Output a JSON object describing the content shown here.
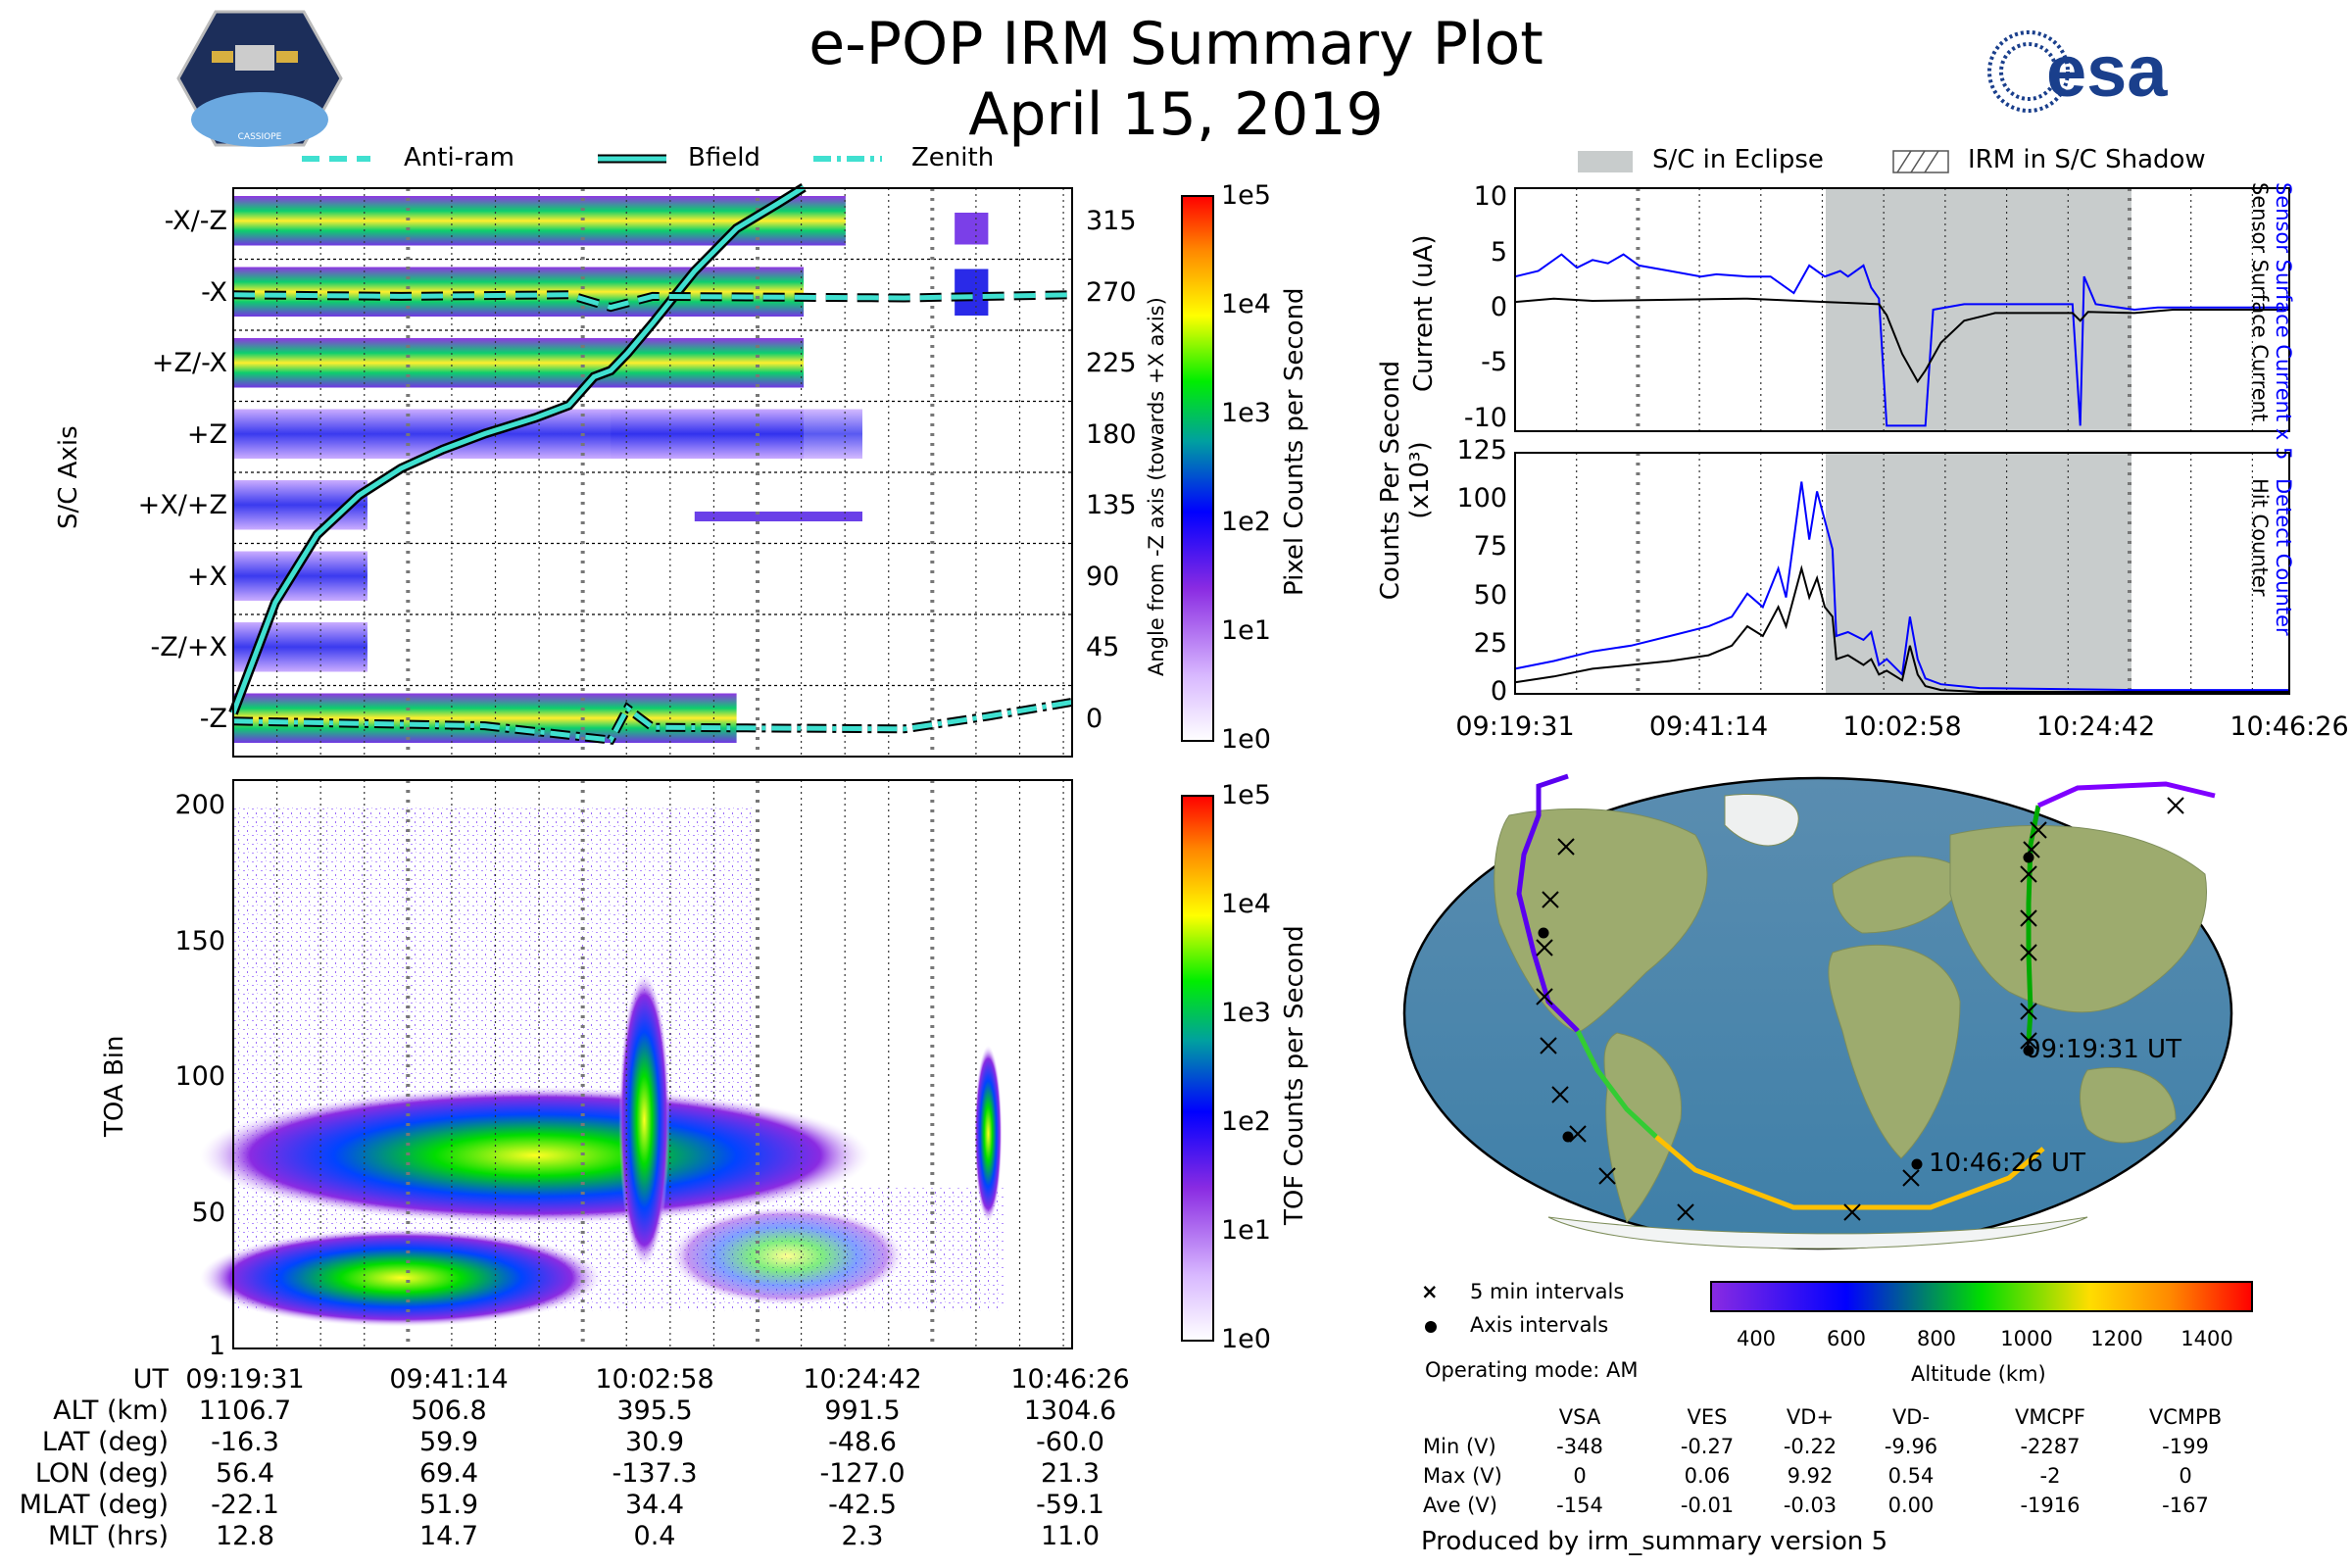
{
  "title": "e-POP IRM Summary Plot",
  "date": "April 15, 2019",
  "logo_left": "CASSIOPE",
  "logo_right": "esa",
  "legend_top": [
    {
      "label": "Anti-ram",
      "style": "dashed"
    },
    {
      "label": "Bfield",
      "style": "solid"
    },
    {
      "label": "Zenith",
      "style": "dashdot"
    }
  ],
  "legend_right": [
    {
      "label": "S/C in Eclipse"
    },
    {
      "label": "IRM in S/C Shadow"
    }
  ],
  "colors": {
    "line": "#40e0d0",
    "blue": "#0000ff",
    "eclipse": "#c8cccc",
    "track": [
      "#7f00ff",
      "#0000ff",
      "#00cc00",
      "#ffd000"
    ]
  },
  "chart_data": [
    {
      "type": "heatmap",
      "name": "sc_axis",
      "ylabel": "S/C Axis",
      "y_categories": [
        "-X/-Z",
        "-X",
        "+Z/-X",
        "+Z",
        "+X/+Z",
        "+X",
        "-Z/+X",
        "-Z"
      ],
      "y2label": "Angle from -Z axis (towards +X axis)",
      "y2_ticks": [
        "315",
        "270",
        "225",
        "180",
        "135",
        "90",
        "45",
        "0"
      ],
      "colorbar_label": "Pixel Counts per Second",
      "colorbar_ticks": [
        "1e5",
        "1e4",
        "1e3",
        "1e2",
        "1e1",
        "1e0"
      ],
      "bfield_angle": [
        [
          0,
          5
        ],
        [
          5,
          75
        ],
        [
          10,
          118
        ],
        [
          15,
          143
        ],
        [
          20,
          160
        ],
        [
          25,
          172
        ],
        [
          30,
          182
        ],
        [
          36,
          192
        ],
        [
          40,
          200
        ],
        [
          43,
          218
        ],
        [
          45,
          222
        ],
        [
          47,
          233
        ],
        [
          50,
          252
        ],
        [
          55,
          285
        ],
        [
          60,
          312
        ],
        [
          65,
          328
        ],
        [
          68,
          338
        ]
      ],
      "antiram_angle": [
        [
          0,
          270
        ],
        [
          20,
          269
        ],
        [
          40,
          270
        ],
        [
          45,
          262
        ],
        [
          50,
          269
        ],
        [
          80,
          268
        ],
        [
          100,
          270
        ]
      ],
      "zenith_angle": [
        [
          0,
          0
        ],
        [
          30,
          -3
        ],
        [
          45,
          -12
        ],
        [
          47,
          8
        ],
        [
          50,
          -4
        ],
        [
          80,
          -5
        ],
        [
          90,
          3
        ],
        [
          100,
          12
        ]
      ]
    },
    {
      "type": "heatmap",
      "name": "toa",
      "ylabel": "TOA Bin",
      "y_ticks": [
        "200",
        "150",
        "100",
        "50",
        "1"
      ],
      "ylim": [
        1,
        210
      ],
      "colorbar_label": "TOF Counts per Second",
      "colorbar_ticks": [
        "1e5",
        "1e4",
        "1e3",
        "1e2",
        "1e1",
        "1e0"
      ]
    },
    {
      "type": "line",
      "name": "current",
      "ylabel": "Current (uA)",
      "y_ticks": [
        "10",
        "5",
        "0",
        "-5",
        "-10"
      ],
      "ylim": [
        -11,
        11
      ],
      "right_labels": [
        "Sensor Surface Current x 5",
        "Sensor Surface Current"
      ],
      "series": [
        {
          "name": "Sensor Surface Current x 5",
          "color": "blue",
          "points": [
            [
              0,
              3
            ],
            [
              3,
              3.5
            ],
            [
              6,
              5
            ],
            [
              8,
              3.8
            ],
            [
              10,
              4.5
            ],
            [
              12,
              4.2
            ],
            [
              14,
              5
            ],
            [
              16,
              4
            ],
            [
              20,
              3.5
            ],
            [
              24,
              3
            ],
            [
              26,
              3.2
            ],
            [
              30,
              3
            ],
            [
              33,
              3
            ],
            [
              36,
              1.5
            ],
            [
              38,
              4
            ],
            [
              40,
              3
            ],
            [
              42,
              3.5
            ],
            [
              43,
              3
            ],
            [
              45,
              4
            ],
            [
              46,
              2
            ],
            [
              47,
              1
            ],
            [
              48,
              -10.5
            ],
            [
              53,
              -10.5
            ],
            [
              54,
              0
            ],
            [
              58,
              0.5
            ],
            [
              63,
              0.5
            ],
            [
              72,
              0.5
            ],
            [
              73,
              -10.5
            ],
            [
              73.5,
              3
            ],
            [
              75,
              0.5
            ],
            [
              80,
              0
            ],
            [
              83,
              0.2
            ],
            [
              100,
              0.2
            ]
          ]
        },
        {
          "name": "Sensor Surface Current",
          "color": "black",
          "points": [
            [
              0,
              0.7
            ],
            [
              5,
              1
            ],
            [
              10,
              0.8
            ],
            [
              20,
              0.9
            ],
            [
              30,
              1
            ],
            [
              40,
              0.7
            ],
            [
              47,
              0.5
            ],
            [
              48,
              -0.5
            ],
            [
              50,
              -4
            ],
            [
              52,
              -6.5
            ],
            [
              53,
              -5.5
            ],
            [
              55,
              -3
            ],
            [
              58,
              -1
            ],
            [
              62,
              -0.3
            ],
            [
              72,
              -0.3
            ],
            [
              73,
              -1
            ],
            [
              74,
              -0.2
            ],
            [
              80,
              -0.3
            ],
            [
              85,
              0
            ],
            [
              100,
              0
            ]
          ]
        }
      ]
    },
    {
      "type": "line",
      "name": "counts",
      "ylabel": "Counts Per Second (x10³)",
      "y_ticks": [
        "125",
        "100",
        "75",
        "50",
        "25",
        "0"
      ],
      "ylim": [
        0,
        125
      ],
      "right_labels": [
        "Detect Counter",
        "Hit Counter"
      ],
      "x_ticks": [
        "09:19:31",
        "09:41:14",
        "10:02:58",
        "10:24:42",
        "10:46:26"
      ],
      "series": [
        {
          "name": "Detect Counter",
          "color": "blue",
          "points": [
            [
              0,
              13
            ],
            [
              5,
              17
            ],
            [
              10,
              22
            ],
            [
              15,
              25
            ],
            [
              20,
              30
            ],
            [
              25,
              35
            ],
            [
              28,
              40
            ],
            [
              30,
              52
            ],
            [
              32,
              45
            ],
            [
              34,
              65
            ],
            [
              35,
              50
            ],
            [
              37,
              110
            ],
            [
              38,
              80
            ],
            [
              39,
              105
            ],
            [
              40,
              90
            ],
            [
              41,
              75
            ],
            [
              41.5,
              30
            ],
            [
              43,
              32
            ],
            [
              45,
              28
            ],
            [
              46,
              32
            ],
            [
              47,
              15
            ],
            [
              48,
              18
            ],
            [
              50,
              10
            ],
            [
              51,
              40
            ],
            [
              52,
              18
            ],
            [
              53,
              8
            ],
            [
              55,
              5
            ],
            [
              60,
              3
            ],
            [
              80,
              2
            ],
            [
              100,
              2
            ]
          ]
        },
        {
          "name": "Hit Counter",
          "color": "black",
          "points": [
            [
              0,
              6
            ],
            [
              5,
              9
            ],
            [
              10,
              13
            ],
            [
              15,
              15
            ],
            [
              20,
              17
            ],
            [
              25,
              20
            ],
            [
              28,
              25
            ],
            [
              30,
              35
            ],
            [
              32,
              30
            ],
            [
              34,
              45
            ],
            [
              35,
              35
            ],
            [
              37,
              65
            ],
            [
              38,
              50
            ],
            [
              39,
              60
            ],
            [
              40,
              45
            ],
            [
              41,
              40
            ],
            [
              41.5,
              18
            ],
            [
              43,
              20
            ],
            [
              45,
              15
            ],
            [
              46,
              18
            ],
            [
              47,
              10
            ],
            [
              48,
              12
            ],
            [
              50,
              7
            ],
            [
              51,
              25
            ],
            [
              52,
              10
            ],
            [
              53,
              4
            ],
            [
              55,
              2
            ],
            [
              60,
              1
            ],
            [
              100,
              1
            ]
          ]
        }
      ]
    }
  ],
  "bottom_table": {
    "row_labels": [
      "UT",
      "ALT (km)",
      "LAT (deg)",
      "LON (deg)",
      "MLAT (deg)",
      "MLT (hrs)"
    ],
    "columns": [
      [
        "09:19:31",
        "1106.7",
        "-16.3",
        "56.4",
        "-22.1",
        "12.8"
      ],
      [
        "09:41:14",
        "506.8",
        "59.9",
        "69.4",
        "51.9",
        "14.7"
      ],
      [
        "10:02:58",
        "395.5",
        "30.9",
        "-137.3",
        "34.4",
        "0.4"
      ],
      [
        "10:24:42",
        "991.5",
        "-48.6",
        "-127.0",
        "-42.5",
        "2.3"
      ],
      [
        "10:46:26",
        "1304.6",
        "-60.0",
        "21.3",
        "-59.1",
        "11.0"
      ]
    ]
  },
  "map": {
    "start_label": "09:19:31 UT",
    "end_label": "10:46:26 UT",
    "legend_cross": "5 min intervals",
    "legend_dot": "Axis intervals",
    "operating_mode": "Operating mode: AM",
    "altitude_label": "Altitude (km)",
    "altitude_ticks": [
      "400",
      "600",
      "800",
      "1000",
      "1200",
      "1400"
    ]
  },
  "voltage_table": {
    "headers": [
      "VSA",
      "VES",
      "VD+",
      "VD-",
      "VMCPF",
      "VCMPB"
    ],
    "rows": [
      {
        "label": "Min (V)",
        "values": [
          "-348",
          "-0.27",
          "-0.22",
          "-9.96",
          "-2287",
          "-199"
        ]
      },
      {
        "label": "Max (V)",
        "values": [
          "0",
          "0.06",
          "9.92",
          "0.54",
          "-2",
          "0"
        ]
      },
      {
        "label": "Ave (V)",
        "values": [
          "-154",
          "-0.01",
          "-0.03",
          "0.00",
          "-1916",
          "-167"
        ]
      }
    ]
  },
  "footer": "Produced by irm_summary version 5"
}
